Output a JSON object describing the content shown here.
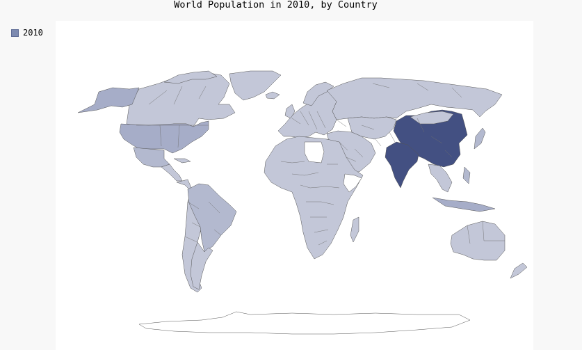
{
  "chart": {
    "title": "World Population in 2010, by Country"
  },
  "legend": {
    "items": [
      {
        "label": "2010",
        "color": "#7d8ab0"
      }
    ]
  },
  "map_colors": {
    "very_high": "#435082",
    "high": "#a6adc8",
    "medium": "#b3b9cf",
    "low": "#c3c7d8",
    "no_data": "#ffffff"
  }
}
